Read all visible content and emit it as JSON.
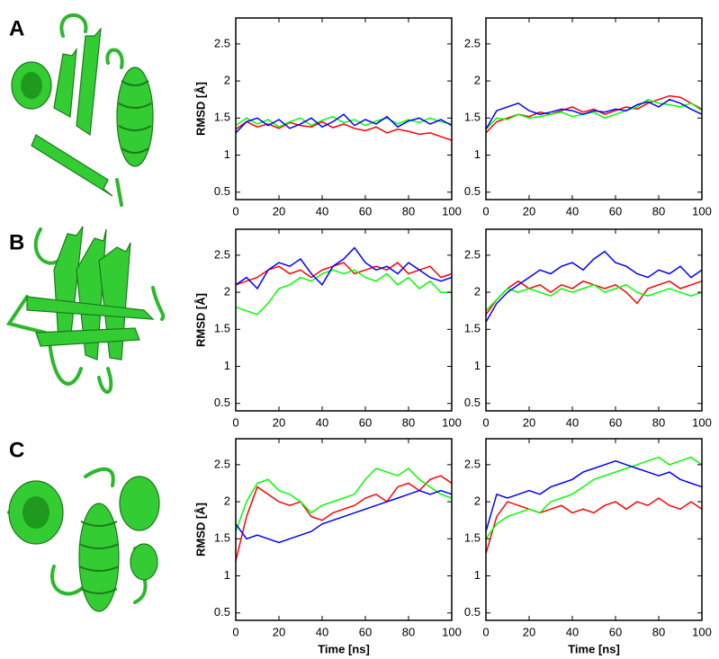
{
  "panel_labels": [
    "A",
    "B",
    "C"
  ],
  "chart_data": [
    {
      "type": "line",
      "ylabel": "RMSD [Å]",
      "x": [
        0,
        5,
        10,
        15,
        20,
        25,
        30,
        35,
        40,
        45,
        50,
        55,
        60,
        65,
        70,
        75,
        80,
        85,
        90,
        95,
        100
      ],
      "xlim": [
        0,
        100
      ],
      "ylim": [
        0.4,
        2.85
      ],
      "xticks": [
        0,
        20,
        40,
        60,
        80,
        100
      ],
      "yticks": [
        0.5,
        1,
        1.5,
        2,
        2.5
      ],
      "series": [
        {
          "color": "#ff0000",
          "values": [
            1.35,
            1.45,
            1.38,
            1.42,
            1.36,
            1.44,
            1.4,
            1.38,
            1.45,
            1.37,
            1.42,
            1.36,
            1.33,
            1.38,
            1.3,
            1.35,
            1.32,
            1.28,
            1.3,
            1.25,
            1.2
          ]
        },
        {
          "color": "#00ff00",
          "values": [
            1.4,
            1.5,
            1.42,
            1.48,
            1.38,
            1.45,
            1.5,
            1.4,
            1.47,
            1.52,
            1.44,
            1.48,
            1.4,
            1.46,
            1.5,
            1.42,
            1.48,
            1.44,
            1.5,
            1.45,
            1.42
          ]
        },
        {
          "color": "#0000ff",
          "values": [
            1.3,
            1.45,
            1.5,
            1.4,
            1.48,
            1.36,
            1.42,
            1.5,
            1.38,
            1.45,
            1.55,
            1.4,
            1.48,
            1.42,
            1.52,
            1.38,
            1.46,
            1.5,
            1.42,
            1.48,
            1.4
          ]
        }
      ]
    },
    {
      "type": "line",
      "x": [
        0,
        5,
        10,
        15,
        20,
        25,
        30,
        35,
        40,
        45,
        50,
        55,
        60,
        65,
        70,
        75,
        80,
        85,
        90,
        95,
        100
      ],
      "xlim": [
        0,
        100
      ],
      "ylim": [
        0.4,
        2.85
      ],
      "xticks": [
        0,
        20,
        40,
        60,
        80,
        100
      ],
      "yticks": [
        0.5,
        1,
        1.5,
        2,
        2.5
      ],
      "series": [
        {
          "color": "#ff0000",
          "values": [
            1.3,
            1.45,
            1.5,
            1.55,
            1.52,
            1.58,
            1.55,
            1.6,
            1.65,
            1.58,
            1.62,
            1.55,
            1.6,
            1.65,
            1.62,
            1.7,
            1.75,
            1.8,
            1.78,
            1.7,
            1.62
          ]
        },
        {
          "color": "#00ff00",
          "values": [
            1.35,
            1.5,
            1.48,
            1.55,
            1.5,
            1.52,
            1.55,
            1.58,
            1.52,
            1.55,
            1.58,
            1.5,
            1.55,
            1.6,
            1.65,
            1.75,
            1.7,
            1.68,
            1.65,
            1.7,
            1.6
          ]
        },
        {
          "color": "#0000ff",
          "values": [
            1.35,
            1.6,
            1.65,
            1.7,
            1.6,
            1.55,
            1.58,
            1.62,
            1.6,
            1.55,
            1.6,
            1.58,
            1.62,
            1.6,
            1.68,
            1.72,
            1.65,
            1.75,
            1.7,
            1.62,
            1.55
          ]
        }
      ]
    },
    {
      "type": "line",
      "ylabel": "RMSD [Å]",
      "x": [
        0,
        5,
        10,
        15,
        20,
        25,
        30,
        35,
        40,
        45,
        50,
        55,
        60,
        65,
        70,
        75,
        80,
        85,
        90,
        95,
        100
      ],
      "xlim": [
        0,
        100
      ],
      "ylim": [
        0.4,
        2.85
      ],
      "xticks": [
        0,
        20,
        40,
        60,
        80,
        100
      ],
      "yticks": [
        0.5,
        1,
        1.5,
        2,
        2.5
      ],
      "series": [
        {
          "color": "#ff0000",
          "values": [
            2.1,
            2.15,
            2.2,
            2.3,
            2.35,
            2.25,
            2.3,
            2.2,
            2.3,
            2.35,
            2.4,
            2.25,
            2.3,
            2.35,
            2.3,
            2.4,
            2.25,
            2.3,
            2.35,
            2.2,
            2.25
          ]
        },
        {
          "color": "#00ff00",
          "values": [
            1.8,
            1.75,
            1.7,
            1.85,
            2.05,
            2.1,
            2.2,
            2.15,
            2.25,
            2.3,
            2.25,
            2.3,
            2.2,
            2.15,
            2.25,
            2.1,
            2.2,
            2.05,
            2.15,
            2.0,
            2.0
          ]
        },
        {
          "color": "#0000ff",
          "values": [
            2.1,
            2.2,
            2.05,
            2.3,
            2.4,
            2.35,
            2.45,
            2.25,
            2.1,
            2.35,
            2.45,
            2.6,
            2.4,
            2.3,
            2.35,
            2.25,
            2.4,
            2.3,
            2.2,
            2.15,
            2.2
          ]
        }
      ]
    },
    {
      "type": "line",
      "x": [
        0,
        5,
        10,
        15,
        20,
        25,
        30,
        35,
        40,
        45,
        50,
        55,
        60,
        65,
        70,
        75,
        80,
        85,
        90,
        95,
        100
      ],
      "xlim": [
        0,
        100
      ],
      "ylim": [
        0.4,
        2.85
      ],
      "xticks": [
        0,
        20,
        40,
        60,
        80,
        100
      ],
      "yticks": [
        0.5,
        1,
        1.5,
        2,
        2.5
      ],
      "series": [
        {
          "color": "#ff0000",
          "values": [
            1.7,
            1.9,
            2.05,
            2.15,
            2.05,
            2.1,
            2.0,
            2.1,
            2.05,
            2.15,
            2.1,
            2.05,
            2.1,
            2.0,
            1.85,
            2.05,
            2.1,
            2.15,
            2.05,
            2.1,
            2.15
          ]
        },
        {
          "color": "#00ff00",
          "values": [
            1.75,
            1.9,
            2.05,
            2.0,
            2.05,
            2.0,
            1.95,
            2.05,
            2.0,
            2.05,
            2.1,
            2.0,
            2.05,
            2.1,
            2.0,
            1.95,
            2.0,
            2.05,
            2.0,
            1.95,
            2.0
          ]
        },
        {
          "color": "#0000ff",
          "values": [
            1.6,
            1.85,
            2.0,
            2.1,
            2.2,
            2.3,
            2.25,
            2.35,
            2.4,
            2.3,
            2.45,
            2.55,
            2.4,
            2.35,
            2.25,
            2.2,
            2.3,
            2.25,
            2.35,
            2.2,
            2.3
          ]
        }
      ]
    },
    {
      "type": "line",
      "ylabel": "RMSD [Å]",
      "xlabel": "Time [ns]",
      "x": [
        0,
        5,
        10,
        15,
        20,
        25,
        30,
        35,
        40,
        45,
        50,
        55,
        60,
        65,
        70,
        75,
        80,
        85,
        90,
        95,
        100
      ],
      "xlim": [
        0,
        100
      ],
      "ylim": [
        0.4,
        2.85
      ],
      "xticks": [
        0,
        20,
        40,
        60,
        80,
        100
      ],
      "yticks": [
        0.5,
        1,
        1.5,
        2,
        2.5
      ],
      "series": [
        {
          "color": "#ff0000",
          "values": [
            1.2,
            1.8,
            2.2,
            2.1,
            2.0,
            1.95,
            2.0,
            1.8,
            1.75,
            1.85,
            1.9,
            1.95,
            2.05,
            2.1,
            2.0,
            2.2,
            2.25,
            2.15,
            2.3,
            2.35,
            2.25
          ]
        },
        {
          "color": "#00ff00",
          "values": [
            1.6,
            2.0,
            2.25,
            2.3,
            2.15,
            2.1,
            2.0,
            1.85,
            1.95,
            2.0,
            2.05,
            2.1,
            2.3,
            2.45,
            2.4,
            2.35,
            2.45,
            2.3,
            2.2,
            2.1,
            2.05
          ]
        },
        {
          "color": "#0000ff",
          "values": [
            1.7,
            1.5,
            1.55,
            1.5,
            1.45,
            1.5,
            1.55,
            1.6,
            1.7,
            1.75,
            1.8,
            1.85,
            1.9,
            1.95,
            2.0,
            2.05,
            2.1,
            2.15,
            2.1,
            2.15,
            2.1
          ]
        }
      ]
    },
    {
      "type": "line",
      "xlabel": "Time [ns]",
      "x": [
        0,
        5,
        10,
        15,
        20,
        25,
        30,
        35,
        40,
        45,
        50,
        55,
        60,
        65,
        70,
        75,
        80,
        85,
        90,
        95,
        100
      ],
      "xlim": [
        0,
        100
      ],
      "ylim": [
        0.4,
        2.85
      ],
      "xticks": [
        0,
        20,
        40,
        60,
        80,
        100
      ],
      "yticks": [
        0.5,
        1,
        1.5,
        2,
        2.5
      ],
      "series": [
        {
          "color": "#ff0000",
          "values": [
            1.3,
            1.8,
            2.0,
            1.95,
            1.9,
            1.85,
            1.9,
            1.95,
            1.85,
            1.9,
            1.85,
            1.95,
            2.0,
            1.9,
            2.0,
            1.95,
            2.05,
            1.95,
            1.9,
            2.0,
            1.9
          ]
        },
        {
          "color": "#00ff00",
          "values": [
            1.5,
            1.7,
            1.8,
            1.85,
            1.9,
            1.85,
            2.0,
            2.05,
            2.1,
            2.2,
            2.3,
            2.35,
            2.4,
            2.45,
            2.5,
            2.55,
            2.6,
            2.5,
            2.55,
            2.6,
            2.5
          ]
        },
        {
          "color": "#0000ff",
          "values": [
            1.6,
            2.1,
            2.05,
            2.1,
            2.15,
            2.1,
            2.2,
            2.25,
            2.3,
            2.4,
            2.45,
            2.5,
            2.55,
            2.5,
            2.45,
            2.4,
            2.35,
            2.4,
            2.3,
            2.25,
            2.2
          ]
        }
      ]
    }
  ]
}
